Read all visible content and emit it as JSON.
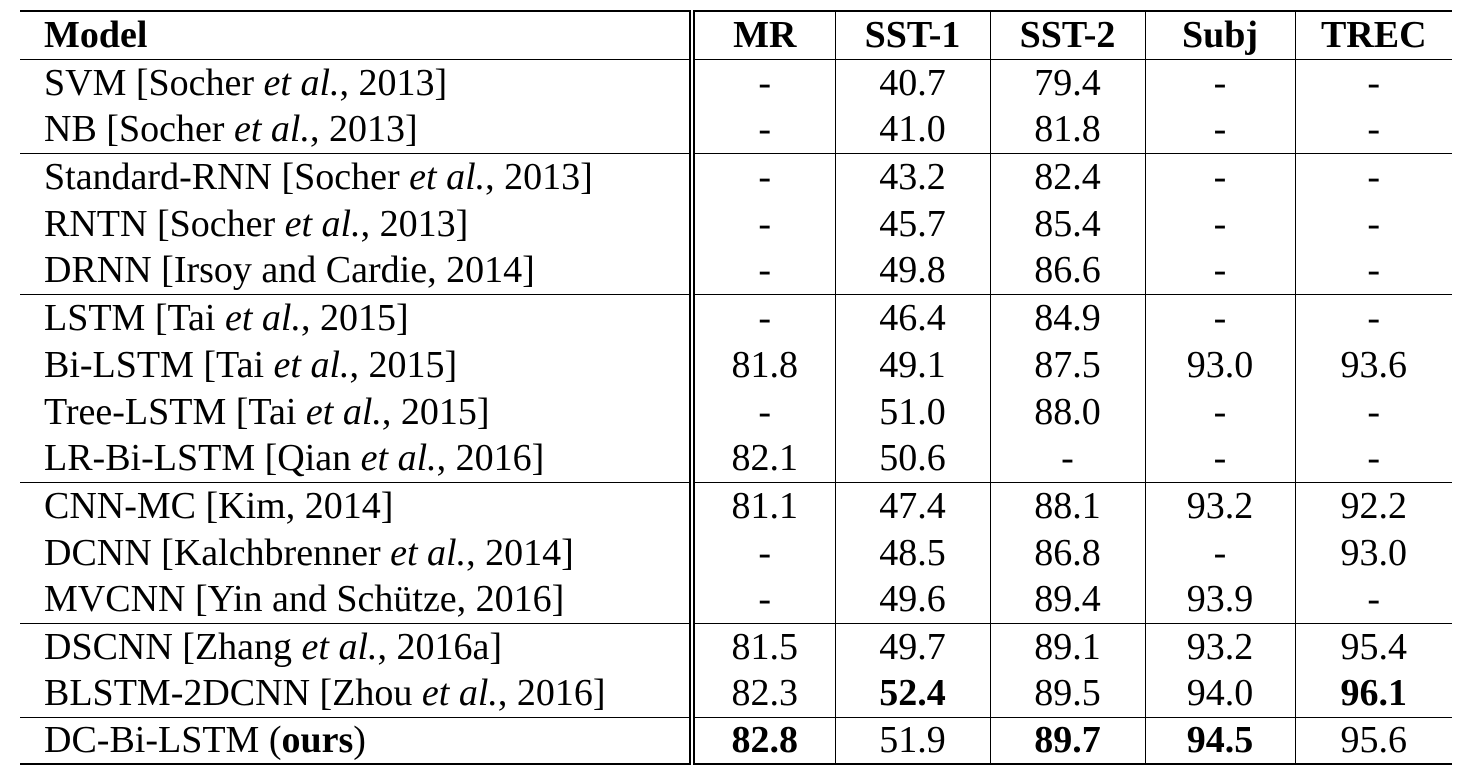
{
  "table": {
    "header": [
      "Model",
      "MR",
      "SST-1",
      "SST-2",
      "Subj",
      "TREC"
    ],
    "groups": [
      {
        "rows": [
          {
            "model": [
              "SVM [Socher ",
              {
                "italic": "et al."
              },
              ", 2013]"
            ],
            "cells": [
              "-",
              "40.7",
              "79.4",
              "-",
              "-"
            ]
          },
          {
            "model": [
              "NB [Socher ",
              {
                "italic": "et al."
              },
              ", 2013]"
            ],
            "cells": [
              "-",
              "41.0",
              "81.8",
              "-",
              "-"
            ]
          }
        ]
      },
      {
        "rows": [
          {
            "model": [
              "Standard-RNN [Socher ",
              {
                "italic": "et al."
              },
              ", 2013]"
            ],
            "cells": [
              "-",
              "43.2",
              "82.4",
              "-",
              "-"
            ]
          },
          {
            "model": [
              "RNTN [Socher ",
              {
                "italic": "et al."
              },
              ", 2013]"
            ],
            "cells": [
              "-",
              "45.7",
              "85.4",
              "-",
              "-"
            ]
          },
          {
            "model": [
              "DRNN [Irsoy and Cardie, 2014]"
            ],
            "cells": [
              "-",
              "49.8",
              "86.6",
              "-",
              "-"
            ]
          }
        ]
      },
      {
        "rows": [
          {
            "model": [
              "LSTM [Tai ",
              {
                "italic": "et al."
              },
              ", 2015]"
            ],
            "cells": [
              "-",
              "46.4",
              "84.9",
              "-",
              "-"
            ]
          },
          {
            "model": [
              "Bi-LSTM [Tai ",
              {
                "italic": "et al."
              },
              ", 2015]"
            ],
            "cells": [
              "81.8",
              "49.1",
              "87.5",
              "93.0",
              "93.6"
            ]
          },
          {
            "model": [
              "Tree-LSTM [Tai ",
              {
                "italic": "et al."
              },
              ", 2015]"
            ],
            "cells": [
              "-",
              "51.0",
              "88.0",
              "-",
              "-"
            ]
          },
          {
            "model": [
              "LR-Bi-LSTM [Qian ",
              {
                "italic": "et al."
              },
              ", 2016]"
            ],
            "cells": [
              "82.1",
              "50.6",
              "-",
              "-",
              "-"
            ]
          }
        ]
      },
      {
        "rows": [
          {
            "model": [
              "CNN-MC [Kim, 2014]"
            ],
            "cells": [
              "81.1",
              "47.4",
              "88.1",
              "93.2",
              "92.2"
            ]
          },
          {
            "model": [
              "DCNN [Kalchbrenner ",
              {
                "italic": "et al."
              },
              ", 2014]"
            ],
            "cells": [
              "-",
              "48.5",
              "86.8",
              "-",
              "93.0"
            ]
          },
          {
            "model": [
              "MVCNN [Yin and Schütze, 2016]"
            ],
            "cells": [
              "-",
              "49.6",
              "89.4",
              "93.9",
              "-"
            ]
          }
        ]
      },
      {
        "rows": [
          {
            "model": [
              "DSCNN [Zhang ",
              {
                "italic": "et al."
              },
              ", 2016a]"
            ],
            "cells": [
              "81.5",
              "49.7",
              "89.1",
              "93.2",
              "95.4"
            ]
          },
          {
            "model": [
              "BLSTM-2DCNN [Zhou ",
              {
                "italic": "et al."
              },
              ", 2016]"
            ],
            "cells": [
              "82.3",
              "52.4",
              "89.5",
              "94.0",
              "96.1"
            ],
            "bold": [
              1,
              4
            ]
          }
        ]
      },
      {
        "rows": [
          {
            "model": [
              "DC-Bi-LSTM (",
              {
                "bold": "ours"
              },
              ")"
            ],
            "cells": [
              "82.8",
              "51.9",
              "89.7",
              "94.5",
              "95.6"
            ],
            "bold": [
              0,
              2,
              3
            ]
          }
        ]
      }
    ]
  }
}
